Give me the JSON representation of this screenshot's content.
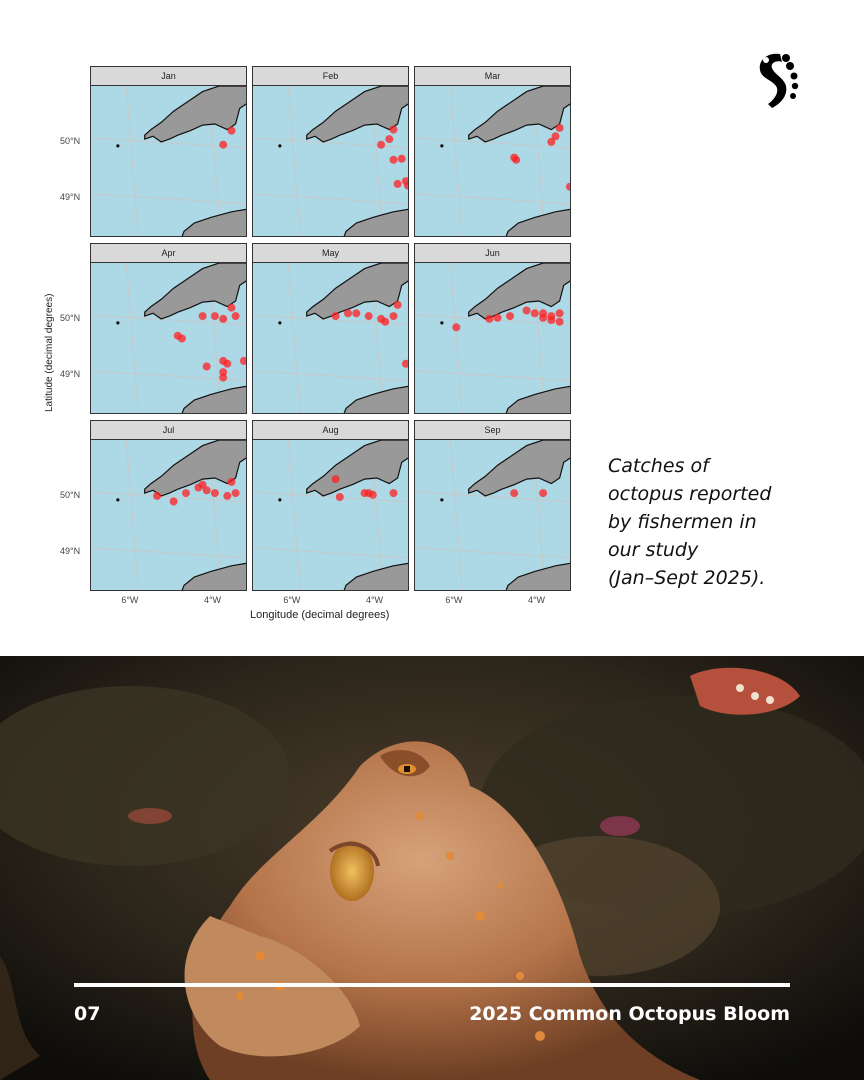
{
  "figure": {
    "panels": [
      "Jan",
      "Feb",
      "Mar",
      "Apr",
      "May",
      "Jun",
      "Jul",
      "Aug",
      "Sep"
    ],
    "y_ticks": [
      "50°N",
      "49°N"
    ],
    "x_ticks": [
      "6°W",
      "4°W"
    ],
    "ylabel": "Latitude (decimal degrees)",
    "xlabel": "Longitude (decimal degrees)"
  },
  "chart_data": {
    "type": "scatter",
    "xlabel": "Longitude (decimal degrees)",
    "ylabel": "Latitude (decimal degrees)",
    "xlim": [
      -7,
      -3.2
    ],
    "ylim": [
      48.3,
      51.0
    ],
    "point_color": "#ff2020",
    "sea_color": "#add8e6",
    "land_color": "#999999",
    "series": [
      {
        "name": "Jan",
        "points": [
          [
            -3.6,
            50.2
          ],
          [
            -3.8,
            49.95
          ]
        ]
      },
      {
        "name": "Feb",
        "points": [
          [
            -3.6,
            50.22
          ],
          [
            -3.7,
            50.05
          ],
          [
            -3.9,
            49.95
          ],
          [
            -3.4,
            49.7
          ],
          [
            -3.6,
            49.68
          ],
          [
            -3.3,
            49.3
          ],
          [
            -3.5,
            49.25
          ],
          [
            -3.25,
            49.22
          ]
        ]
      },
      {
        "name": "Mar",
        "points": [
          [
            -3.5,
            50.25
          ],
          [
            -3.6,
            50.1
          ],
          [
            -3.7,
            50.0
          ],
          [
            -4.6,
            49.72
          ],
          [
            -4.55,
            49.68
          ],
          [
            -3.25,
            49.2
          ]
        ]
      },
      {
        "name": "Apr",
        "points": [
          [
            -3.6,
            50.2
          ],
          [
            -3.5,
            50.05
          ],
          [
            -4.0,
            50.05
          ],
          [
            -3.8,
            50.0
          ],
          [
            -4.3,
            50.05
          ],
          [
            -4.9,
            49.7
          ],
          [
            -4.8,
            49.65
          ],
          [
            -3.8,
            49.25
          ],
          [
            -3.7,
            49.2
          ],
          [
            -3.8,
            49.05
          ],
          [
            -3.8,
            48.95
          ],
          [
            -4.2,
            49.15
          ],
          [
            -3.3,
            49.25
          ]
        ]
      },
      {
        "name": "May",
        "points": [
          [
            -5.0,
            50.05
          ],
          [
            -4.7,
            50.1
          ],
          [
            -4.5,
            50.1
          ],
          [
            -4.2,
            50.05
          ],
          [
            -3.9,
            50.0
          ],
          [
            -3.6,
            50.05
          ],
          [
            -3.5,
            50.25
          ],
          [
            -3.8,
            49.95
          ],
          [
            -3.3,
            49.2
          ]
        ]
      },
      {
        "name": "Jun",
        "points": [
          [
            -6.0,
            49.85
          ],
          [
            -5.2,
            50.0
          ],
          [
            -5.0,
            50.02
          ],
          [
            -4.7,
            50.05
          ],
          [
            -4.3,
            50.15
          ],
          [
            -4.1,
            50.1
          ],
          [
            -3.9,
            50.1
          ],
          [
            -3.7,
            50.05
          ],
          [
            -3.5,
            50.1
          ],
          [
            -3.5,
            49.95
          ],
          [
            -3.7,
            49.98
          ],
          [
            -3.9,
            50.02
          ]
        ]
      },
      {
        "name": "Jul",
        "points": [
          [
            -5.4,
            50.0
          ],
          [
            -5.0,
            49.9
          ],
          [
            -4.7,
            50.05
          ],
          [
            -4.4,
            50.15
          ],
          [
            -4.2,
            50.1
          ],
          [
            -4.0,
            50.05
          ],
          [
            -3.7,
            50.0
          ],
          [
            -3.5,
            50.05
          ],
          [
            -3.6,
            50.25
          ],
          [
            -4.3,
            50.2
          ]
        ]
      },
      {
        "name": "Aug",
        "points": [
          [
            -5.0,
            50.3
          ],
          [
            -4.9,
            49.98
          ],
          [
            -4.3,
            50.05
          ],
          [
            -4.1,
            50.02
          ],
          [
            -3.6,
            50.05
          ],
          [
            -4.2,
            50.05
          ]
        ]
      },
      {
        "name": "Sep",
        "points": [
          [
            -4.6,
            50.05
          ],
          [
            -3.9,
            50.05
          ]
        ]
      }
    ]
  },
  "caption": {
    "lines": [
      "Catches of",
      "octopus reported",
      "by fishermen in",
      "our study",
      "(Jan–Sept 2025)."
    ]
  },
  "footer": {
    "page_number": "07",
    "title": "2025 Common Octopus Bloom"
  },
  "logo": {
    "icon": "octopus-tentacle-logo",
    "color": "#000000"
  }
}
